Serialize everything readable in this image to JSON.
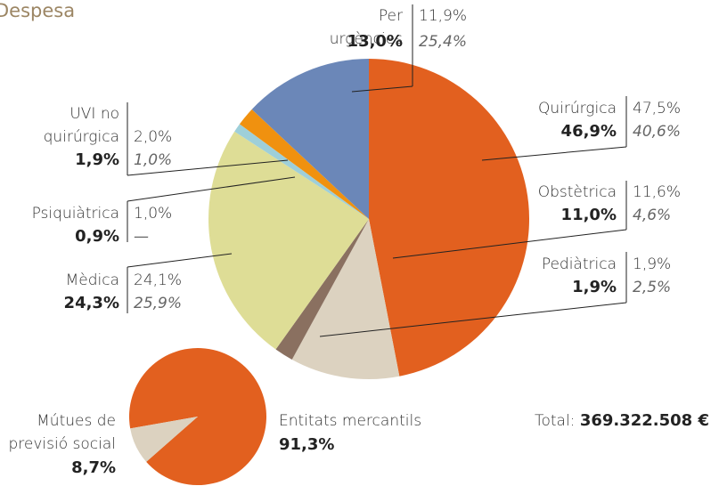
{
  "chart_data": [
    {
      "type": "pie",
      "title": "Despesa",
      "categories": [
        "Quirúrgica",
        "Obstètrica",
        "Pediàtrica",
        "Mèdica",
        "Psiquiàtrica",
        "UVI no quirúrgica",
        "Per urgències"
      ],
      "values": [
        46.9,
        11.0,
        1.9,
        24.3,
        0.9,
        1.9,
        13.0
      ],
      "value_labels": [
        "46,9%",
        "11,0%",
        "1,9%",
        "24,3%",
        "0,9%",
        "1,9%",
        "13,0%"
      ],
      "colors": [
        "#e2601f",
        "#dcd2c0",
        "#8a7060",
        "#dedd96",
        "#9ecfd9",
        "#f0910f",
        "#6b87b8"
      ],
      "secondary_values": [
        47.5,
        11.6,
        1.9,
        24.1,
        1.0,
        2.0,
        11.9
      ],
      "secondary_labels": [
        "47,5%",
        "11,6%",
        "1,9%",
        "24,1%",
        "1,0%",
        "2,0%",
        "11,9%"
      ],
      "tertiary_values": [
        40.6,
        4.6,
        2.5,
        25.9,
        null,
        1.0,
        25.4
      ],
      "tertiary_labels": [
        "40,6%",
        "4,6%",
        "2,5%",
        "25,9%",
        "—",
        "1,0%",
        "25,4%"
      ],
      "total_label": "Total:",
      "total_value": "369.322.508 €"
    },
    {
      "type": "pie",
      "categories": [
        "Entitats mercantils",
        "Mútues de previsió social"
      ],
      "values": [
        91.3,
        8.7
      ],
      "value_labels": [
        "91,3%",
        "8,7%"
      ],
      "colors": [
        "#e2601f",
        "#dcd2c0"
      ]
    }
  ]
}
